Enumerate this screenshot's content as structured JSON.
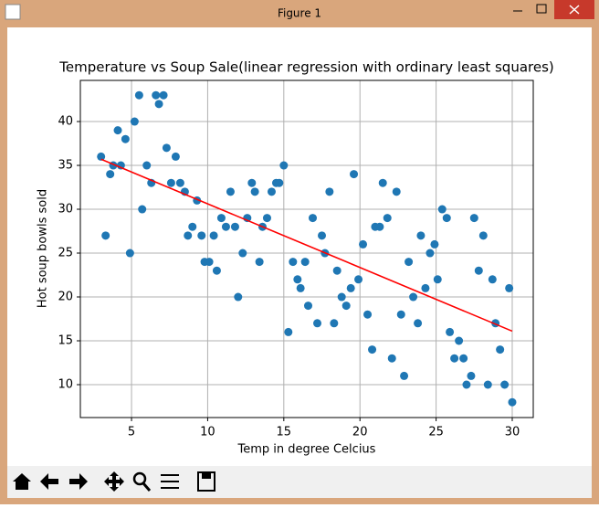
{
  "window": {
    "title": "Figure 1"
  },
  "chart_data": {
    "type": "scatter",
    "title": "Temperature vs Soup Sale(linear regression with ordinary least squares)",
    "x_label": "Temp in degree Celcius",
    "y_label": "Hot soup bowls sold",
    "x": [
      3.0,
      3.3,
      3.6,
      3.8,
      4.1,
      4.3,
      4.6,
      4.9,
      5.2,
      5.5,
      5.7,
      6.0,
      6.3,
      6.6,
      6.8,
      7.1,
      7.3,
      7.6,
      7.9,
      8.2,
      8.5,
      8.7,
      9.0,
      9.3,
      9.6,
      9.8,
      10.1,
      10.4,
      10.6,
      10.9,
      11.2,
      11.5,
      11.8,
      12.0,
      12.3,
      12.6,
      12.9,
      13.1,
      13.4,
      13.6,
      13.9,
      14.2,
      14.5,
      14.7,
      15.0,
      15.3,
      15.6,
      15.9,
      16.1,
      16.4,
      16.6,
      16.9,
      17.2,
      17.5,
      17.7,
      18.0,
      18.3,
      18.5,
      18.8,
      19.1,
      19.4,
      19.6,
      19.9,
      20.2,
      20.5,
      20.8,
      21.0,
      21.3,
      21.5,
      21.8,
      22.1,
      22.4,
      22.7,
      22.9,
      23.2,
      23.5,
      23.8,
      24.0,
      24.3,
      24.6,
      24.9,
      25.1,
      25.4,
      25.7,
      25.9,
      26.2,
      26.5,
      26.8,
      27.0,
      27.3,
      27.5,
      27.8,
      28.1,
      28.4,
      28.7,
      28.9,
      29.2,
      29.5,
      29.8,
      30.0
    ],
    "series": [
      {
        "type": "scatter",
        "color": "#1f77b4",
        "values": [
          36,
          27,
          34,
          35,
          39,
          35,
          38,
          25,
          40,
          43,
          30,
          35,
          33,
          43,
          42,
          43,
          37,
          33,
          36,
          33,
          32,
          27,
          28,
          31,
          27,
          24,
          24,
          27,
          23,
          29,
          28,
          32,
          28,
          20,
          25,
          29,
          33,
          32,
          24,
          28,
          29,
          32,
          33,
          33,
          35,
          16,
          24,
          22,
          21,
          24,
          19,
          29,
          17,
          27,
          25,
          32,
          17,
          23,
          20,
          19,
          21,
          34,
          22,
          26,
          18,
          14,
          28,
          28,
          33,
          29,
          13,
          32,
          18,
          11,
          24,
          20,
          17,
          27,
          21,
          25,
          26,
          22,
          30,
          29,
          16,
          13,
          15,
          13,
          10,
          11,
          29,
          23,
          27,
          10,
          22,
          17,
          14,
          10,
          21,
          8
        ]
      },
      {
        "type": "line",
        "color": "#ff0000",
        "x": [
          3,
          30
        ],
        "values": [
          35.7,
          16.1
        ]
      }
    ],
    "xlim": [
      1.64,
      31.38
    ],
    "ylim": [
      6.25,
      44.69
    ],
    "xticks": [
      5,
      10,
      15,
      20,
      25,
      30
    ],
    "yticks": [
      10,
      15,
      20,
      25,
      30,
      35,
      40
    ],
    "grid": true
  }
}
